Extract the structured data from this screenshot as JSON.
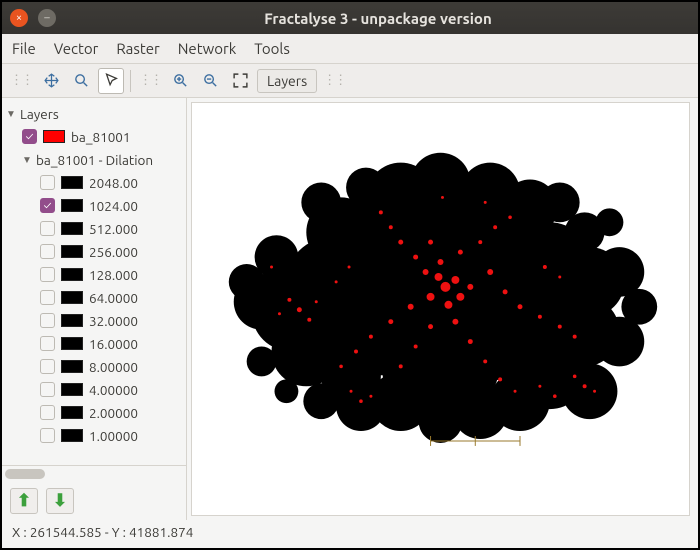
{
  "window": {
    "title": "Fractalyse 3 - unpackage version"
  },
  "menubar": [
    "File",
    "Vector",
    "Raster",
    "Network",
    "Tools"
  ],
  "toolbar": {
    "icons": [
      "pan-icon",
      "zoom-in-icon",
      "pointer-icon",
      "zoom-plus-icon",
      "zoom-minus-icon",
      "fit-icon"
    ],
    "layers_label": "Layers"
  },
  "tree": {
    "root_label": "Layers",
    "main_layer": {
      "label": "ba_81001",
      "checked": true,
      "color": "#ff0000"
    },
    "dilation_label": "ba_81001 - Dilation",
    "dilation_items": [
      {
        "label": "2048.00",
        "checked": false,
        "color": "#000000"
      },
      {
        "label": "1024.00",
        "checked": true,
        "color": "#000000"
      },
      {
        "label": "512.000",
        "checked": false,
        "color": "#000000"
      },
      {
        "label": "256.000",
        "checked": false,
        "color": "#000000"
      },
      {
        "label": "128.000",
        "checked": false,
        "color": "#000000"
      },
      {
        "label": "64.0000",
        "checked": false,
        "color": "#000000"
      },
      {
        "label": "32.0000",
        "checked": false,
        "color": "#000000"
      },
      {
        "label": "16.0000",
        "checked": false,
        "color": "#000000"
      },
      {
        "label": "8.00000",
        "checked": false,
        "color": "#000000"
      },
      {
        "label": "4.00000",
        "checked": false,
        "color": "#000000"
      },
      {
        "label": "2.00000",
        "checked": false,
        "color": "#000000"
      },
      {
        "label": "1.00000",
        "checked": false,
        "color": "#000000"
      }
    ]
  },
  "status": {
    "coords": "X : 261544.585 - Y : 41881.874"
  },
  "colors": {
    "accent": "#924d8b",
    "red": "#ff0000"
  }
}
